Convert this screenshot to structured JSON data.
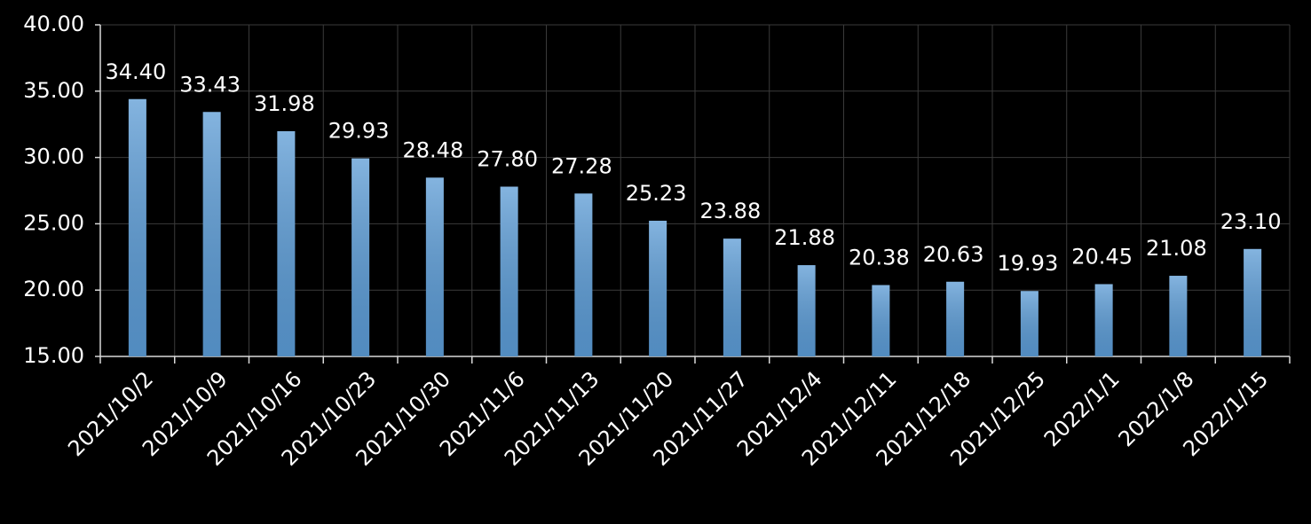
{
  "chart_data": {
    "type": "bar",
    "categories": [
      "2021/10/2",
      "2021/10/9",
      "2021/10/16",
      "2021/10/23",
      "2021/10/30",
      "2021/11/6",
      "2021/11/13",
      "2021/11/20",
      "2021/11/27",
      "2021/12/4",
      "2021/12/11",
      "2021/12/18",
      "2021/12/25",
      "2022/1/1",
      "2022/1/8",
      "2022/1/15"
    ],
    "values": [
      34.4,
      33.43,
      31.98,
      29.93,
      28.48,
      27.8,
      27.28,
      25.23,
      23.88,
      21.88,
      20.38,
      20.63,
      19.93,
      20.45,
      21.08,
      23.1
    ],
    "value_labels": [
      "34.40",
      "33.43",
      "31.98",
      "29.93",
      "28.48",
      "27.80",
      "27.28",
      "25.23",
      "23.88",
      "21.88",
      "20.38",
      "20.63",
      "19.93",
      "20.45",
      "21.08",
      "23.10"
    ],
    "color": "#5b9bd5",
    "ylim": [
      15,
      40
    ],
    "yticks": [
      {
        "value": 15,
        "label": "15.00"
      },
      {
        "value": 20,
        "label": "20.00"
      },
      {
        "value": 25,
        "label": "25.00"
      },
      {
        "value": 30,
        "label": "30.00"
      },
      {
        "value": 35,
        "label": "35.00"
      },
      {
        "value": 40,
        "label": "40.00"
      }
    ],
    "grid": true
  }
}
